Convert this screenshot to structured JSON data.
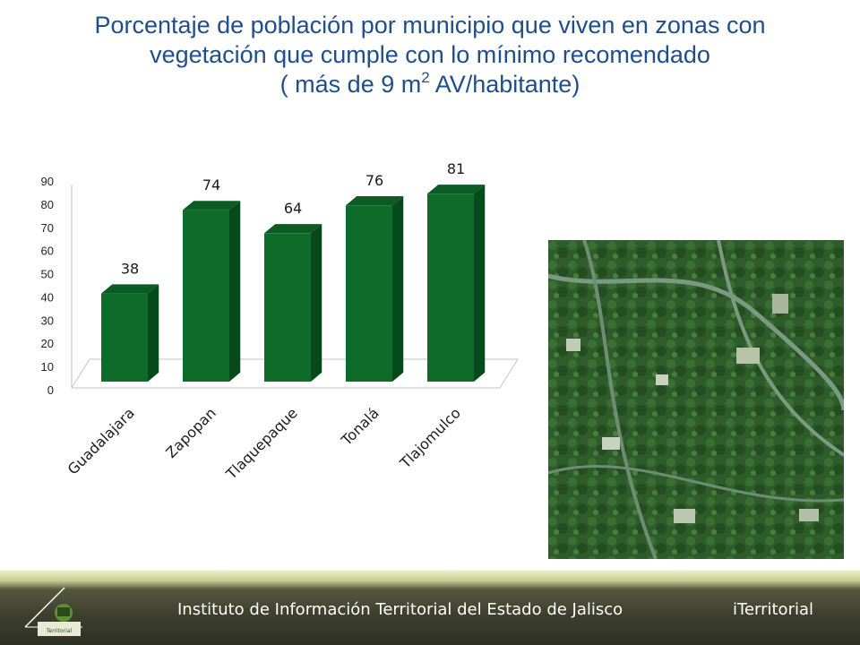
{
  "title": {
    "line1": "Porcentaje de población por municipio que viven en zonas con",
    "line2": "vegetación que cumple con lo mínimo recomendado",
    "line3_pre": "( más de 9 m",
    "line3_sup": "2",
    "line3_post": " AV/habitante)"
  },
  "chart_data": {
    "type": "bar",
    "style": "3d-column",
    "categories": [
      "Guadalajara",
      "Zapopan",
      "Tlaquepaque",
      "Tonalá",
      "Tlajomulco"
    ],
    "values": [
      38,
      74,
      64,
      76,
      81
    ],
    "ylim": [
      0,
      90
    ],
    "yticks": [
      0,
      10,
      20,
      30,
      40,
      50,
      60,
      70,
      80,
      90
    ],
    "data_labels": [
      "38",
      "74",
      "64",
      "76",
      "81"
    ],
    "bar_color": "#0e6b2a",
    "grid": false,
    "legend": false
  },
  "photo": {
    "description_icon": "aerial-vegetation-image"
  },
  "footer": {
    "institute": "Instituto de Información Territorial del Estado de Jalisco",
    "brand": "iTerritorial",
    "logo_text": "Territorial"
  }
}
